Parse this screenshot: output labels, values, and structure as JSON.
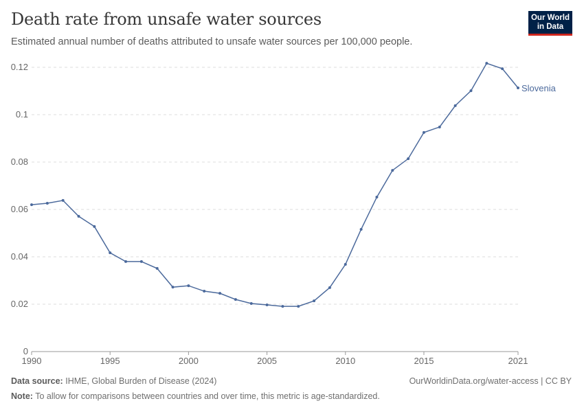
{
  "header": {
    "title": "Death rate from unsafe water sources",
    "subtitle": "Estimated annual number of deaths attributed to unsafe water sources per 100,000 people.",
    "logo_line1": "Our World",
    "logo_line2": "in Data"
  },
  "footer": {
    "source_label": "Data source:",
    "source_text": "IHME, Global Burden of Disease (2024)",
    "url": "OurWorldinData.org/water-access | CC BY",
    "note_label": "Note:",
    "note_text": "To allow for comparisons between countries and over time, this metric is age-standardized."
  },
  "chart_data": {
    "type": "line",
    "title": "Death rate from unsafe water sources",
    "xlim": [
      1990,
      2021
    ],
    "ylim": [
      0,
      0.12
    ],
    "x_ticks": [
      "1990",
      "1995",
      "2000",
      "2005",
      "2010",
      "2015",
      "2021"
    ],
    "y_ticks": [
      "0",
      "0.02",
      "0.04",
      "0.06",
      "0.08",
      "0.1",
      "0.12"
    ],
    "grid": true,
    "colors": {
      "series": "#4c6a9c",
      "grid": "#dddddd"
    },
    "series": [
      {
        "name": "Slovenia",
        "x": [
          1990,
          1991,
          1992,
          1993,
          1994,
          1995,
          1996,
          1997,
          1998,
          1999,
          2000,
          2001,
          2002,
          2003,
          2004,
          2005,
          2006,
          2007,
          2008,
          2009,
          2010,
          2011,
          2012,
          2013,
          2014,
          2015,
          2016,
          2017,
          2018,
          2019,
          2020,
          2021
        ],
        "values": [
          0.062,
          0.0626,
          0.0638,
          0.0571,
          0.0528,
          0.0417,
          0.038,
          0.038,
          0.0351,
          0.0272,
          0.0278,
          0.0255,
          0.0246,
          0.022,
          0.0203,
          0.0197,
          0.0191,
          0.0191,
          0.0214,
          0.027,
          0.0368,
          0.0516,
          0.0652,
          0.0765,
          0.0814,
          0.0925,
          0.0948,
          0.1038,
          0.1101,
          0.1217,
          0.1194,
          0.1113
        ]
      }
    ]
  }
}
